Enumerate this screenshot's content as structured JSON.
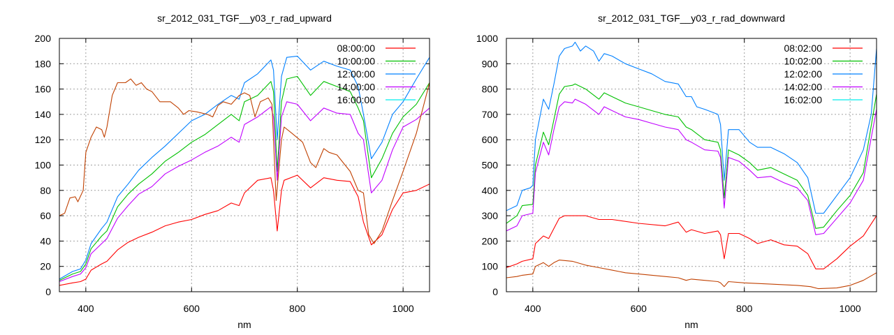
{
  "chart_data": [
    {
      "type": "line",
      "title": "sr_2012_031_TGF__y03_r_rad_upward",
      "xlabel": "nm",
      "ylabel": "",
      "xlim": [
        350,
        1050
      ],
      "ylim": [
        0,
        200
      ],
      "xticks": [
        400,
        600,
        800,
        1000
      ],
      "yticks": [
        0,
        20,
        40,
        60,
        80,
        100,
        120,
        140,
        160,
        180,
        200
      ],
      "grid": true,
      "legend_position": "top-right",
      "series": [
        {
          "name": "08:00:00",
          "color": "#ff0000",
          "legend_color": "#ff0000",
          "x": [
            350,
            375,
            390,
            400,
            410,
            430,
            440,
            460,
            480,
            500,
            525,
            550,
            575,
            600,
            625,
            650,
            675,
            690,
            700,
            725,
            750,
            755,
            762,
            770,
            775,
            800,
            825,
            850,
            875,
            900,
            915,
            925,
            940,
            960,
            980,
            1000,
            1025,
            1050
          ],
          "y": [
            5,
            7,
            8,
            10,
            17,
            22,
            24,
            33,
            39,
            43,
            47,
            52,
            55,
            57,
            61,
            64,
            70,
            68,
            78,
            88,
            90,
            80,
            48,
            80,
            88,
            92,
            82,
            90,
            88,
            87,
            75,
            55,
            37,
            45,
            65,
            78,
            80,
            85
          ]
        },
        {
          "name": "10:00:00",
          "color": "#00c000",
          "legend_color": "#00c000",
          "x": [
            350,
            375,
            390,
            400,
            410,
            430,
            440,
            460,
            480,
            500,
            525,
            550,
            575,
            600,
            625,
            650,
            675,
            690,
            700,
            725,
            750,
            755,
            762,
            770,
            780,
            800,
            825,
            850,
            875,
            900,
            915,
            925,
            940,
            960,
            980,
            1000,
            1025,
            1050
          ],
          "y": [
            9,
            14,
            16,
            22,
            34,
            44,
            48,
            67,
            77,
            85,
            93,
            103,
            110,
            118,
            124,
            132,
            140,
            135,
            150,
            155,
            166,
            158,
            95,
            150,
            168,
            170,
            155,
            166,
            162,
            158,
            145,
            135,
            90,
            105,
            125,
            138,
            148,
            165
          ]
        },
        {
          "name": "12:00:00",
          "color": "#0080ff",
          "legend_color": "#0080ff",
          "x": [
            350,
            375,
            390,
            400,
            410,
            430,
            440,
            460,
            480,
            500,
            525,
            550,
            575,
            600,
            625,
            650,
            675,
            690,
            700,
            725,
            750,
            755,
            762,
            770,
            780,
            800,
            825,
            850,
            875,
            900,
            915,
            925,
            940,
            960,
            980,
            1000,
            1025,
            1050
          ],
          "y": [
            10,
            16,
            18,
            25,
            38,
            50,
            55,
            75,
            85,
            96,
            106,
            115,
            125,
            135,
            140,
            148,
            155,
            152,
            165,
            172,
            183,
            175,
            120,
            170,
            185,
            186,
            175,
            182,
            178,
            175,
            162,
            140,
            105,
            118,
            140,
            150,
            168,
            185
          ]
        },
        {
          "name": "14:00:00",
          "color": "#c000ff",
          "legend_color": "#c000ff",
          "x": [
            350,
            375,
            390,
            400,
            410,
            430,
            440,
            460,
            480,
            500,
            525,
            550,
            575,
            600,
            625,
            650,
            675,
            690,
            700,
            725,
            750,
            755,
            762,
            770,
            780,
            800,
            825,
            850,
            875,
            900,
            915,
            925,
            940,
            960,
            980,
            1000,
            1025,
            1050
          ],
          "y": [
            8,
            12,
            14,
            19,
            30,
            38,
            42,
            58,
            68,
            77,
            83,
            93,
            99,
            104,
            110,
            115,
            122,
            118,
            132,
            138,
            146,
            138,
            88,
            138,
            150,
            148,
            135,
            145,
            141,
            140,
            125,
            120,
            78,
            88,
            112,
            130,
            136,
            145
          ]
        },
        {
          "name": "16:00:00",
          "color": "#c04000",
          "legend_color": "#00eeee",
          "x": [
            350,
            360,
            370,
            380,
            385,
            395,
            400,
            410,
            420,
            430,
            435,
            440,
            450,
            460,
            475,
            485,
            495,
            505,
            515,
            525,
            540,
            560,
            575,
            585,
            595,
            610,
            630,
            640,
            650,
            660,
            675,
            690,
            700,
            710,
            720,
            730,
            745,
            752,
            760,
            770,
            775,
            790,
            810,
            825,
            835,
            850,
            860,
            875,
            900,
            915,
            925,
            935,
            945,
            960,
            980,
            1000,
            1025,
            1050
          ],
          "y": [
            60,
            62,
            74,
            75,
            71,
            80,
            110,
            122,
            130,
            128,
            122,
            130,
            155,
            165,
            165,
            168,
            163,
            165,
            160,
            158,
            150,
            150,
            145,
            140,
            143,
            142,
            140,
            138,
            147,
            150,
            148,
            155,
            157,
            155,
            138,
            150,
            153,
            148,
            72,
            120,
            130,
            125,
            118,
            102,
            98,
            113,
            110,
            108,
            95,
            80,
            78,
            45,
            38,
            48,
            72,
            95,
            125,
            165
          ]
        }
      ]
    },
    {
      "type": "line",
      "title": "sr_2012_031_TGF__y03_r_rad_downward",
      "xlabel": "nm",
      "ylabel": "",
      "xlim": [
        350,
        1050
      ],
      "ylim": [
        0,
        1000
      ],
      "xticks": [
        400,
        600,
        800,
        1000
      ],
      "yticks": [
        0,
        100,
        200,
        300,
        400,
        500,
        600,
        700,
        800,
        900,
        1000
      ],
      "grid": true,
      "legend_position": "top-right",
      "series": [
        {
          "name": "08:02:00",
          "color": "#ff0000",
          "legend_color": "#ff0000",
          "x": [
            350,
            370,
            380,
            400,
            405,
            420,
            430,
            440,
            450,
            460,
            500,
            525,
            550,
            600,
            650,
            675,
            690,
            700,
            725,
            750,
            755,
            762,
            770,
            790,
            810,
            825,
            850,
            875,
            900,
            920,
            935,
            950,
            975,
            1000,
            1025,
            1050
          ],
          "y": [
            95,
            110,
            120,
            130,
            190,
            220,
            210,
            250,
            290,
            300,
            300,
            285,
            285,
            270,
            260,
            275,
            235,
            245,
            230,
            240,
            225,
            130,
            230,
            230,
            210,
            190,
            205,
            185,
            180,
            150,
            90,
            90,
            130,
            180,
            220,
            300
          ]
        },
        {
          "name": "10:02:00",
          "color": "#00c000",
          "legend_color": "#00c000",
          "x": [
            350,
            370,
            380,
            400,
            405,
            420,
            430,
            440,
            450,
            460,
            475,
            480,
            500,
            525,
            535,
            550,
            575,
            600,
            625,
            650,
            675,
            690,
            700,
            725,
            750,
            755,
            762,
            770,
            790,
            810,
            825,
            850,
            875,
            900,
            920,
            935,
            950,
            975,
            1000,
            1025,
            1050
          ],
          "y": [
            270,
            300,
            340,
            345,
            500,
            630,
            580,
            680,
            780,
            810,
            815,
            820,
            800,
            760,
            785,
            770,
            745,
            730,
            715,
            700,
            690,
            650,
            640,
            600,
            590,
            560,
            370,
            560,
            540,
            510,
            480,
            490,
            465,
            440,
            380,
            250,
            255,
            320,
            380,
            470,
            780
          ]
        },
        {
          "name": "12:02:00",
          "color": "#0080ff",
          "legend_color": "#0080ff",
          "x": [
            350,
            370,
            380,
            395,
            400,
            405,
            420,
            430,
            440,
            450,
            460,
            475,
            480,
            490,
            500,
            515,
            525,
            535,
            550,
            575,
            600,
            625,
            650,
            675,
            690,
            700,
            710,
            725,
            750,
            755,
            762,
            770,
            790,
            810,
            825,
            850,
            875,
            900,
            920,
            935,
            950,
            975,
            1000,
            1025,
            1040,
            1050
          ],
          "y": [
            320,
            340,
            400,
            410,
            420,
            600,
            760,
            720,
            820,
            930,
            960,
            970,
            985,
            950,
            970,
            950,
            910,
            940,
            930,
            900,
            880,
            860,
            830,
            820,
            770,
            770,
            730,
            720,
            700,
            660,
            440,
            640,
            640,
            590,
            570,
            570,
            545,
            510,
            450,
            310,
            310,
            380,
            450,
            560,
            700,
            960
          ]
        },
        {
          "name": "14:02:00",
          "color": "#c000ff",
          "legend_color": "#c000ff",
          "x": [
            350,
            370,
            380,
            400,
            405,
            420,
            430,
            440,
            450,
            460,
            475,
            480,
            500,
            525,
            535,
            550,
            575,
            600,
            625,
            650,
            675,
            690,
            700,
            725,
            750,
            755,
            762,
            770,
            790,
            810,
            825,
            850,
            875,
            900,
            920,
            935,
            950,
            975,
            1000,
            1025,
            1050
          ],
          "y": [
            240,
            260,
            300,
            310,
            470,
            590,
            540,
            640,
            730,
            750,
            745,
            760,
            740,
            700,
            730,
            715,
            690,
            680,
            665,
            650,
            640,
            600,
            590,
            560,
            555,
            530,
            330,
            530,
            515,
            480,
            450,
            455,
            430,
            410,
            360,
            225,
            230,
            290,
            350,
            440,
            720
          ]
        },
        {
          "name": "16:02:00",
          "color": "#c04000",
          "legend_color": "#00eeee",
          "x": [
            350,
            370,
            380,
            400,
            405,
            420,
            430,
            440,
            450,
            475,
            500,
            525,
            550,
            575,
            600,
            650,
            675,
            690,
            700,
            725,
            750,
            755,
            762,
            770,
            800,
            850,
            900,
            925,
            940,
            975,
            1000,
            1025,
            1050
          ],
          "y": [
            55,
            60,
            65,
            70,
            100,
            115,
            100,
            115,
            125,
            120,
            105,
            95,
            85,
            75,
            70,
            60,
            55,
            45,
            50,
            45,
            40,
            35,
            20,
            40,
            35,
            30,
            25,
            20,
            12,
            15,
            25,
            45,
            75
          ]
        }
      ]
    }
  ]
}
